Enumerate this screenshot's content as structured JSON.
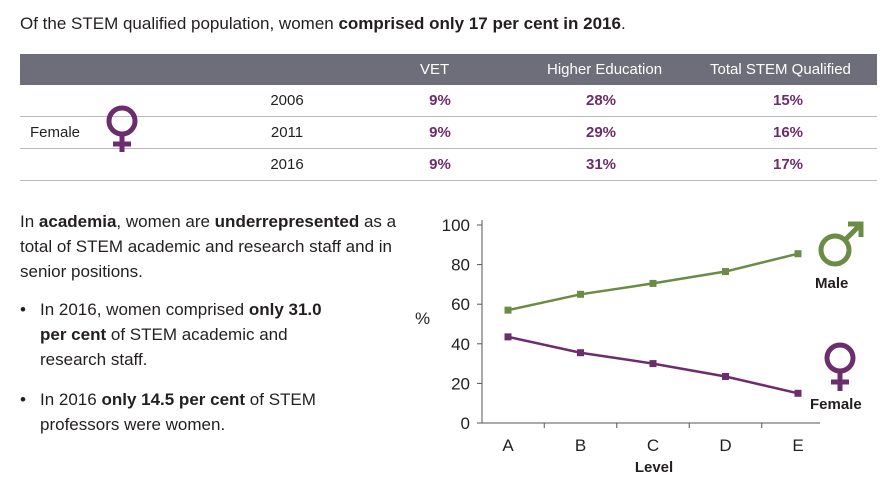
{
  "headline": {
    "prefix": "Of the STEM qualified population, women ",
    "bold": "comprised only 17 per cent in 2016",
    "suffix": "."
  },
  "table": {
    "columns": [
      "VET",
      "Higher Education",
      "Total STEM Qualified"
    ],
    "group_label": "Female",
    "rows": [
      {
        "year": "2006",
        "vet": "9%",
        "higher_ed": "28%",
        "total": "15%"
      },
      {
        "year": "2011",
        "vet": "9%",
        "higher_ed": "29%",
        "total": "16%"
      },
      {
        "year": "2016",
        "vet": "9%",
        "higher_ed": "31%",
        "total": "17%"
      }
    ]
  },
  "paragraph": {
    "p1": "In ",
    "b1": "academia",
    "p2": ", women are ",
    "b2": "underrepresented",
    "p3": " as a total of STEM academic and research staff and in senior positions."
  },
  "bullets": [
    {
      "pre": "In 2016, women comprised ",
      "bold": "only 31.0 per cent",
      "post": " of STEM academic and research staff."
    },
    {
      "pre": "In 2016 ",
      "bold": "only 14.5 per cent",
      "post": " of STEM professors were women."
    }
  ],
  "colors": {
    "male": "#6b8c46",
    "female": "#6b2d6b",
    "header_bg": "#6d6e79",
    "axis": "#555555"
  },
  "icons": {
    "male": "male-symbol-icon",
    "female": "female-symbol-icon"
  },
  "chart_data": {
    "type": "line",
    "categories": [
      "A",
      "B",
      "C",
      "D",
      "E"
    ],
    "series": [
      {
        "name": "Male",
        "values": [
          57,
          65,
          70.5,
          76.5,
          85.5
        ]
      },
      {
        "name": "Female",
        "values": [
          43.5,
          35.5,
          30,
          23.5,
          15
        ]
      }
    ],
    "xlabel": "Level",
    "ylabel": "%",
    "ylim": [
      0,
      100
    ],
    "yticks": [
      0,
      20,
      40,
      60,
      80,
      100
    ],
    "grid": false,
    "legend": "series labels at right end of lines"
  }
}
